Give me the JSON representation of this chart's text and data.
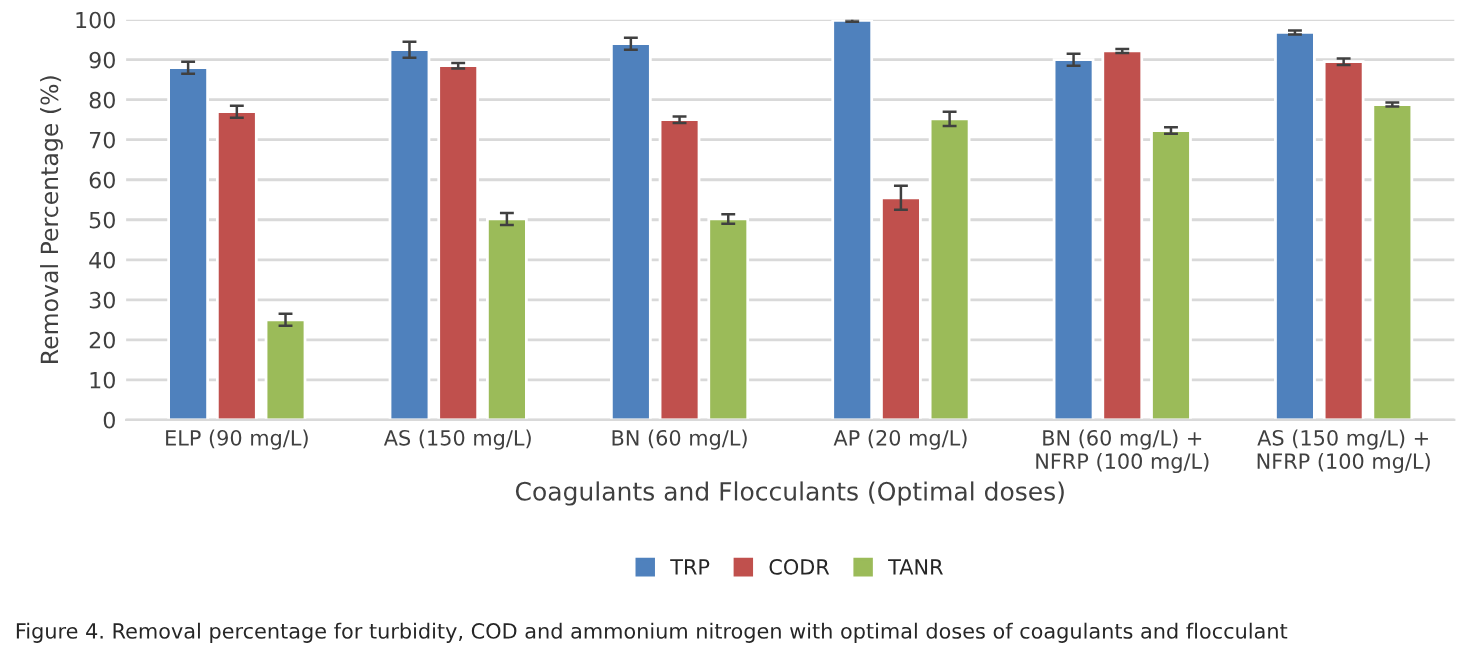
{
  "chart_data": {
    "type": "bar",
    "xlabel": "Coagulants and Flocculants (Optimal doses)",
    "ylabel": "Removal Percentage (%)",
    "categories": [
      "ELP (90 mg/L)",
      "AS (150 mg/L)",
      "BN (60 mg/L)",
      "AP (20 mg/L)",
      "BN (60 mg/L) +\nNFRP (100 mg/L)",
      "AS (150 mg/L) +\nNFRP (100 mg/L)"
    ],
    "series": [
      {
        "name": "TRP",
        "color": "#4f81bd",
        "values": [
          88,
          92.5,
          94,
          99.8,
          90,
          96.8
        ],
        "errors": [
          1.5,
          2,
          1.5,
          0.3,
          1.5,
          0.5
        ]
      },
      {
        "name": "CODR",
        "color": "#c0504d",
        "values": [
          77,
          88.5,
          75,
          55.5,
          92.2,
          89.5
        ],
        "errors": [
          1.5,
          0.7,
          0.8,
          3,
          0.5,
          0.8
        ]
      },
      {
        "name": "TANR",
        "color": "#9bbb59",
        "values": [
          25,
          50.2,
          50.2,
          75.2,
          72.3,
          78.8
        ],
        "errors": [
          1.5,
          1.5,
          1.2,
          1.8,
          0.8,
          0.5
        ]
      }
    ],
    "ylim": [
      0,
      100
    ],
    "yticks": [
      0,
      10,
      20,
      30,
      40,
      50,
      60,
      70,
      80,
      90,
      100
    ],
    "grid": "y",
    "legend": "bottom",
    "annotations": [
      "Figure 4. Removal percentage for turbidity, COD and ammonium nitrogen with optimal doses of coagulants and flocculant"
    ]
  }
}
